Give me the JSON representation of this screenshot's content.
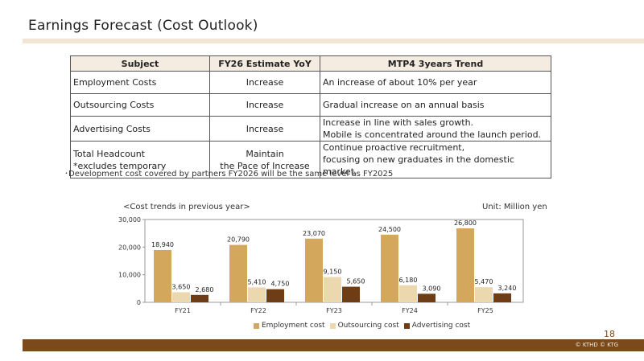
{
  "header": {
    "title": "Earnings Forecast (Cost Outlook)"
  },
  "table": {
    "headers": [
      "Subject",
      "FY26 Estimate YoY",
      "MTP4 3years Trend"
    ],
    "rows": [
      {
        "subject": "Employment Costs",
        "yoy": "Increase",
        "trend": "An increase of about 10% per year"
      },
      {
        "subject": "Outsourcing Costs",
        "yoy": "Increase",
        "trend": "Gradual increase on an annual basis"
      },
      {
        "subject": "Advertising Costs",
        "yoy": "Increase",
        "trend_line1": "Increase in line with sales growth.",
        "trend_line2": "Mobile is concentrated around the launch period."
      },
      {
        "subject_line1": "Total Headcount",
        "subject_line2": "*excludes temporary",
        "yoy_line1": "Maintain",
        "yoy_line2": "the Pace of Increase",
        "trend_line1": "Continue proactive recruitment,",
        "trend_line2": "focusing on new graduates in the domestic market."
      }
    ]
  },
  "note": "･Development cost covered by partners FY2026 will be the same level as FY2025",
  "chart_caption": "<Cost trends in previous year>",
  "chart_unit": "Unit: Million yen",
  "chart_data": {
    "type": "bar",
    "categories": [
      "FY21",
      "FY22",
      "FY23",
      "FY24",
      "FY25"
    ],
    "series": [
      {
        "name": "Employment cost",
        "values": [
          18940,
          20790,
          23070,
          24500,
          26800
        ],
        "color": "#d3a85d"
      },
      {
        "name": "Outsourcing cost",
        "values": [
          3650,
          5410,
          9150,
          6180,
          5470
        ],
        "color": "#ecd8ae"
      },
      {
        "name": "Advertising cost",
        "values": [
          2680,
          4750,
          5650,
          3090,
          3240
        ],
        "color": "#6e3d16"
      }
    ],
    "yticks": [
      0,
      10000,
      20000,
      30000
    ],
    "ytick_labels": [
      "0",
      "10,000",
      "20,000",
      "30,000"
    ],
    "data_labels": [
      [
        "18,940",
        "20,790",
        "23,070",
        "24,500",
        "26,800"
      ],
      [
        "3,650",
        "5,410",
        "9,150",
        "6,180",
        "5,470"
      ],
      [
        "2,680",
        "4,750",
        "5,650",
        "3,090",
        "3,240"
      ]
    ],
    "ylim": [
      0,
      30000
    ],
    "grid": false,
    "legend_position": "bottom"
  },
  "page_number": "18",
  "copyright": "© KTHD © KTG"
}
